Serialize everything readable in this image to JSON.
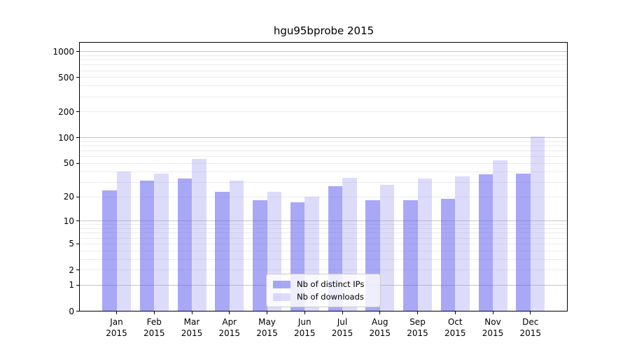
{
  "title": "hgu95bprobe 2015",
  "chart_data": {
    "type": "bar",
    "title": "hgu95bprobe 2015",
    "x_year_label": "2015",
    "categories": [
      "Jan",
      "Feb",
      "Mar",
      "Apr",
      "May",
      "Jun",
      "Jul",
      "Aug",
      "Sep",
      "Oct",
      "Nov",
      "Dec"
    ],
    "series": [
      {
        "name": "Nb of distinct IPs",
        "color": "rgba(81,81,237,0.5)",
        "values": [
          24,
          31,
          33,
          23,
          18,
          17,
          27,
          18,
          18,
          19,
          37,
          38
        ]
      },
      {
        "name": "Nb of downloads",
        "color": "rgba(138,138,238,0.3)",
        "values": [
          40,
          38,
          57,
          31,
          23,
          20,
          34,
          28,
          33,
          35,
          54,
          104
        ]
      }
    ],
    "y_ticks": [
      0,
      1,
      2,
      5,
      10,
      20,
      50,
      100,
      200,
      500,
      1000
    ],
    "y_scale": "log1p",
    "ylim": [
      0,
      1250
    ],
    "grid": true,
    "legend_position": "lower center",
    "colors": {
      "bar_ips": "rgba(81,81,237,0.5)",
      "bar_downloads": "rgba(138,138,238,0.3)",
      "grid_major": "#c6c6c6",
      "grid_minor": "#ececec",
      "axis": "#000000",
      "legend_border": "#cccccc",
      "background": "#ffffff"
    }
  }
}
